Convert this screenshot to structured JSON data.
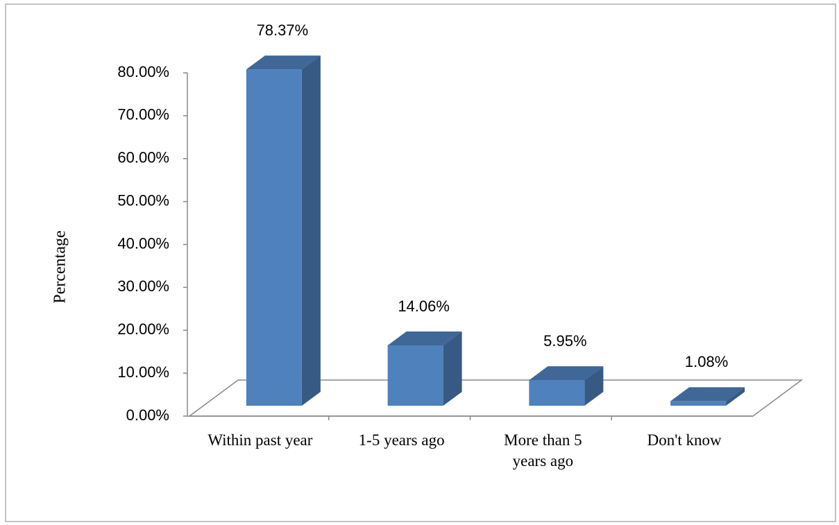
{
  "chart_data": {
    "type": "bar3d",
    "y_label": "Percentage",
    "categories": [
      "Within past year",
      "1-5 years ago",
      "More than 5 years ago",
      "Don't know"
    ],
    "values": [
      78.37,
      14.06,
      5.95,
      1.08
    ],
    "value_labels": [
      "78.37%",
      "14.06%",
      "5.95%",
      "1.08%"
    ],
    "color": "#4f81bd",
    "ylim": [
      0,
      80
    ],
    "yticks": [
      {
        "value": 0,
        "label": "0.00%"
      },
      {
        "value": 10,
        "label": "10.00%"
      },
      {
        "value": 20,
        "label": "20.00%"
      },
      {
        "value": 30,
        "label": "30.00%"
      },
      {
        "value": 40,
        "label": "40.00%"
      },
      {
        "value": 50,
        "label": "50.00%"
      },
      {
        "value": 60,
        "label": "60.00%"
      },
      {
        "value": 70,
        "label": "70.00%"
      },
      {
        "value": 80,
        "label": "80.00%"
      }
    ]
  }
}
